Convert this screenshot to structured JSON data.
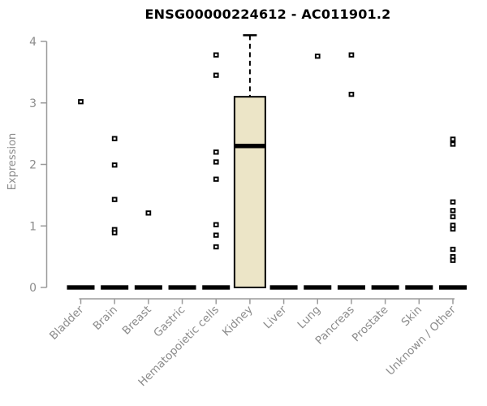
{
  "title": "ENSG00000224612 - AC011901.2",
  "y_axis": {
    "label": "Expression",
    "ticks": [
      "0",
      "1",
      "2",
      "3",
      "4"
    ],
    "min": 0,
    "max": 4
  },
  "colors": {
    "box_fill": "#ECE5C7",
    "box_border": "#000000",
    "marker_fill": "#ffffff",
    "marker_border": "#000000",
    "axis_line": "#9b9b9b",
    "tick_text": "#8c8c8c",
    "title_text": "#000000",
    "zero_bar": "#000000"
  },
  "chart_data": {
    "type": "boxplot",
    "title": "ENSG00000224612 - AC011901.2",
    "xlabel": "",
    "ylabel": "Expression",
    "ylim": [
      0,
      4
    ],
    "yticks": [
      0,
      1,
      2,
      3,
      4
    ],
    "grid": false,
    "legend": false,
    "categories": [
      "Bladder",
      "Brain",
      "Breast",
      "Gastric",
      "Hematopoietic cells",
      "Kidney",
      "Liver",
      "Lung",
      "Pancreas",
      "Prostate",
      "Skin",
      "Unknown / Other"
    ],
    "groups": [
      {
        "label": "Bladder",
        "median": 0,
        "zero_bar": true,
        "outliers": [
          3.02
        ]
      },
      {
        "label": "Brain",
        "median": 0,
        "zero_bar": true,
        "outliers": [
          2.42,
          1.99,
          1.43,
          0.94,
          0.89
        ]
      },
      {
        "label": "Breast",
        "median": 0,
        "zero_bar": true,
        "outliers": [
          1.21
        ]
      },
      {
        "label": "Gastric",
        "median": 0,
        "zero_bar": true,
        "outliers": []
      },
      {
        "label": "Hematopoietic cells",
        "median": 0,
        "zero_bar": true,
        "outliers": [
          3.78,
          3.45,
          2.2,
          2.04,
          1.76,
          1.02,
          0.85,
          0.66
        ]
      },
      {
        "label": "Kidney",
        "median": 2.3,
        "zero_bar": false,
        "outliers": [],
        "box": {
          "whisker_low": 0,
          "q1": 0,
          "median": 2.3,
          "q3": 3.1,
          "whisker_high": 4.1
        }
      },
      {
        "label": "Liver",
        "median": 0,
        "zero_bar": true,
        "outliers": []
      },
      {
        "label": "Lung",
        "median": 0,
        "zero_bar": true,
        "outliers": [
          3.76
        ]
      },
      {
        "label": "Pancreas",
        "median": 0,
        "zero_bar": true,
        "outliers": [
          3.78,
          3.14
        ]
      },
      {
        "label": "Prostate",
        "median": 0,
        "zero_bar": true,
        "outliers": []
      },
      {
        "label": "Skin",
        "median": 0,
        "zero_bar": true,
        "outliers": []
      },
      {
        "label": "Unknown / Other",
        "median": 0,
        "zero_bar": true,
        "outliers": [
          2.41,
          2.33,
          1.39,
          1.25,
          1.15,
          1.01,
          0.95,
          0.62,
          0.5,
          0.44
        ]
      }
    ]
  }
}
